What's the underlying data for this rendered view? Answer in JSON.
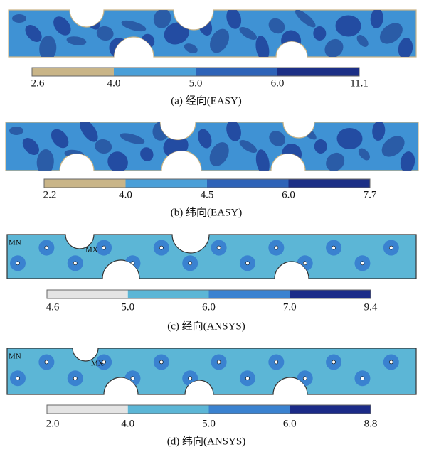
{
  "panels": [
    {
      "caption": "(a) 经向(EASY)",
      "colors": [
        "#c9b588",
        "#4a9fd8",
        "#2e63b8",
        "#1c2f86"
      ],
      "labels": [
        "2.6",
        "4.0",
        "5.0",
        "6.0",
        "11.1"
      ]
    },
    {
      "caption": "(b) 纬向(EASY)",
      "colors": [
        "#c9b588",
        "#4a9fd8",
        "#2e63b8",
        "#1c2f86"
      ],
      "labels": [
        "2.2",
        "4.0",
        "4.5",
        "6.0",
        "7.7"
      ]
    },
    {
      "caption": "(c) 经向(ANSYS)",
      "colors": [
        "#e4e4e4",
        "#5cb6d6",
        "#3a82d0",
        "#1b2b88"
      ],
      "labels": [
        "4.6",
        "5.0",
        "6.0",
        "7.0",
        "9.4"
      ],
      "markers": [
        "MN",
        "MX"
      ]
    },
    {
      "caption": "(d) 纬向(ANSYS)",
      "colors": [
        "#e4e4e4",
        "#5cb6d6",
        "#3a82d0",
        "#1b2b88"
      ],
      "labels": [
        "2.0",
        "4.0",
        "5.0",
        "6.0",
        "8.8"
      ],
      "markers": [
        "MN",
        "MX"
      ]
    }
  ]
}
